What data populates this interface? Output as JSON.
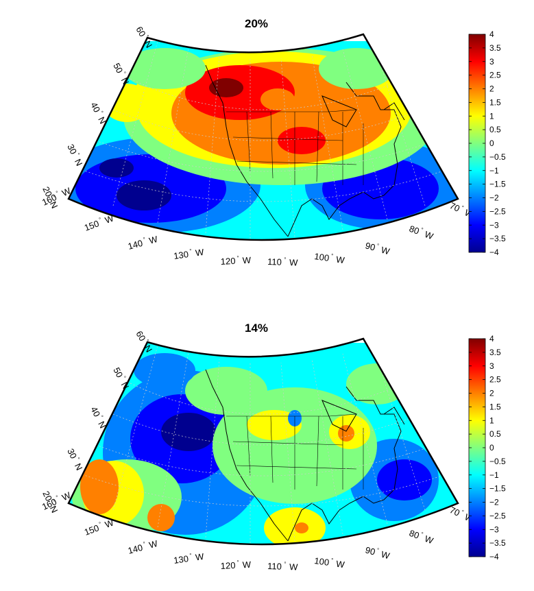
{
  "panels": [
    {
      "id": "top",
      "title": "20%",
      "lat_labels": [
        "60",
        "50",
        "40",
        "30",
        "20"
      ],
      "lon_labels": [
        "160",
        "150",
        "140",
        "130",
        "120",
        "110",
        "100",
        "90",
        "80",
        "70"
      ],
      "field": "warm-north-cool-south",
      "colorbar": {
        "min": -4,
        "max": 4,
        "tick_labels": [
          "4",
          "3.5",
          "3",
          "2.5",
          "2",
          "1.5",
          "1",
          "0.5",
          "0",
          "−0.5",
          "−1",
          "−1.5",
          "−2",
          "−2.5",
          "−3",
          "−3.5",
          "−4"
        ]
      }
    },
    {
      "id": "bottom",
      "title": "14%",
      "lat_labels": [
        "60",
        "50",
        "40",
        "30",
        "20"
      ],
      "lon_labels": [
        "160",
        "150",
        "140",
        "130",
        "120",
        "110",
        "100",
        "90",
        "80",
        "70"
      ],
      "field": "cool-pacific-warm-southwest",
      "colorbar": {
        "min": -4,
        "max": 4,
        "tick_labels": [
          "4",
          "3.5",
          "3",
          "2.5",
          "2",
          "1.5",
          "1",
          "0.5",
          "0",
          "−0.5",
          "−1",
          "−1.5",
          "−2",
          "−2.5",
          "−3",
          "−3.5",
          "−4"
        ]
      }
    }
  ],
  "units": {
    "north": "N",
    "west": "W"
  },
  "colors": {
    "dark_red": "#800000",
    "red": "#ff0000",
    "orange": "#ff8000",
    "yellow": "#ffff00",
    "green": "#80ff80",
    "cyan": "#00ffff",
    "sky": "#0080ff",
    "blue": "#0000ff",
    "dark_blue": "#00008f"
  }
}
